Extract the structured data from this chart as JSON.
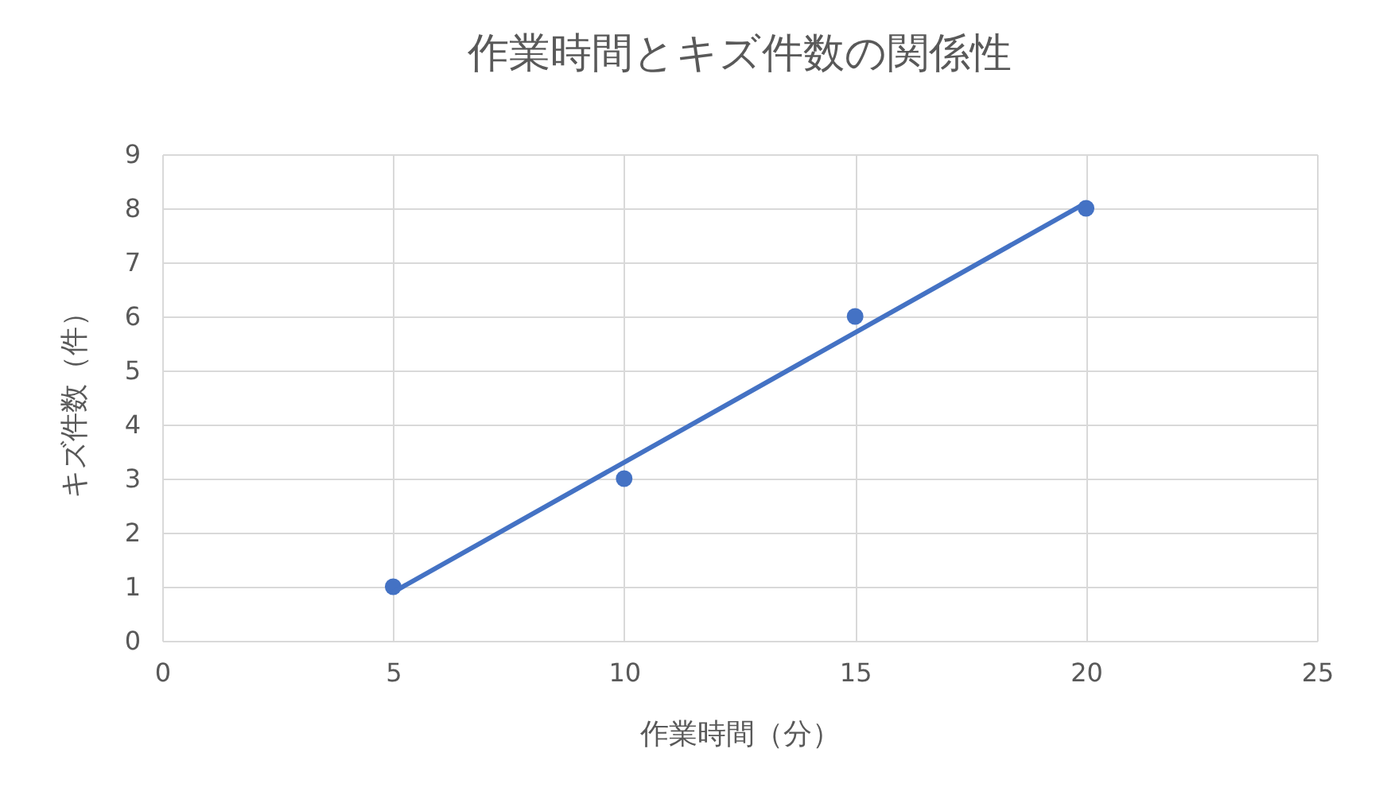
{
  "chart_data": {
    "type": "scatter",
    "title": "作業時間とキズ件数の関係性",
    "xlabel": "作業時間（分）",
    "ylabel": "キズ件数（件）",
    "xlim": [
      0,
      25
    ],
    "xticks": [
      0,
      5,
      10,
      15,
      20,
      25
    ],
    "ylim": [
      0,
      9
    ],
    "yticks": [
      0,
      1,
      2,
      3,
      4,
      5,
      6,
      7,
      8,
      9
    ],
    "grid": true,
    "marker": "circle",
    "series": [
      {
        "type": "scatter",
        "color": "#4472c4",
        "x": [
          5,
          10,
          15,
          20
        ],
        "values": [
          1,
          3,
          6,
          8
        ]
      },
      {
        "type": "line",
        "color": "#4472c4",
        "x": [
          5,
          20
        ],
        "values": [
          0.9,
          8.1
        ],
        "marker": "none"
      }
    ]
  }
}
